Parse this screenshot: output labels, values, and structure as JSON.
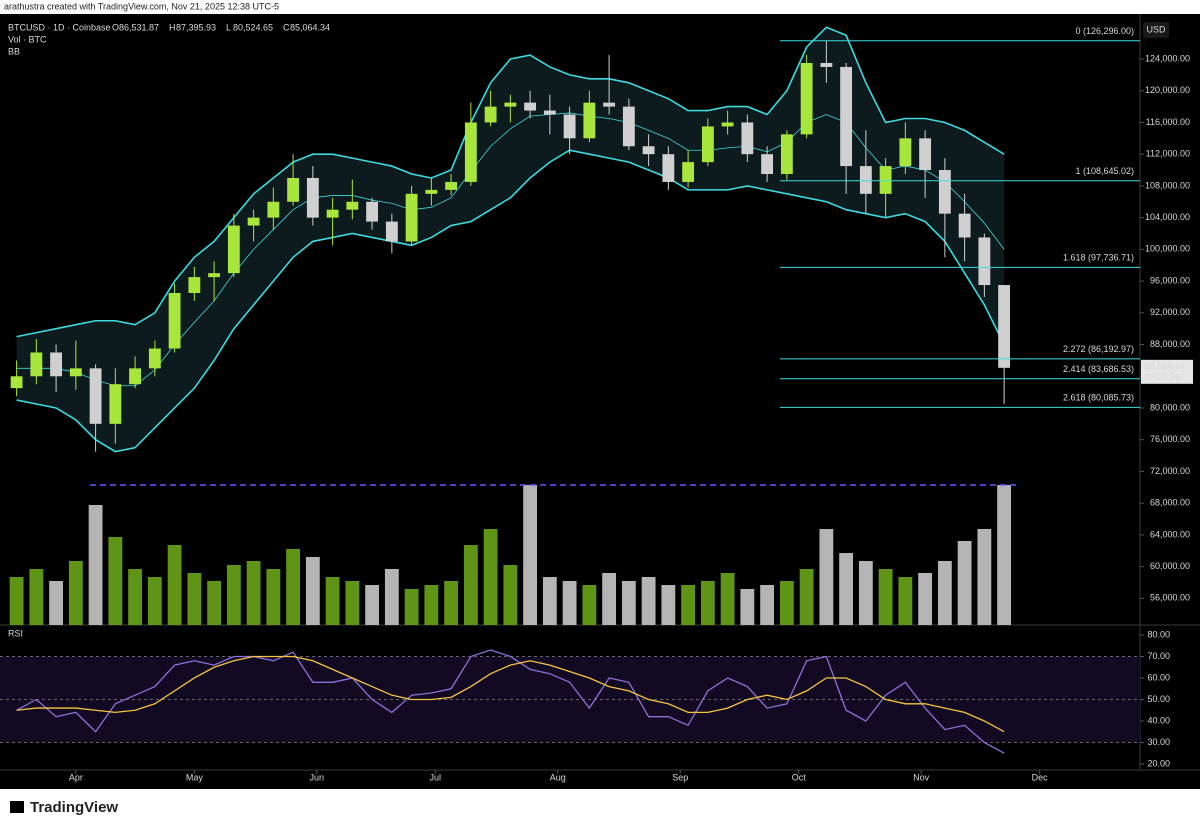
{
  "header": "arathustra created with TradingView.com, Nov 21, 2025 12:38 UTC-5",
  "footer": "TradingView",
  "chart_data": {
    "type": "candlestick",
    "symbol": "BTCUSD · 1D · Coinbase",
    "ohlc": [
      {
        "key": "O",
        "value": "86,531.87"
      },
      {
        "key": "H",
        "value": "87,395.93"
      },
      {
        "key": "L",
        "value": "80,524.65"
      },
      {
        "key": "C",
        "value": "85,064.34"
      }
    ],
    "volume_label": "Vol · BTC",
    "bb_label": "BB",
    "currency": "USD",
    "price_tag": "85,064.34",
    "countdown": "06:21:26",
    "x": [
      -15,
      -10,
      -5,
      0,
      5,
      10,
      15,
      20,
      25,
      30,
      35,
      40,
      45,
      50,
      55,
      60,
      65,
      70,
      75,
      80,
      85,
      90,
      95,
      100,
      105,
      110,
      115,
      120,
      125,
      130,
      135,
      140,
      145,
      150,
      155,
      160,
      165,
      170,
      175,
      180,
      185,
      190,
      195,
      200,
      205,
      210,
      215,
      220,
      225,
      230,
      235
    ],
    "xlim": [
      -19.2,
      269.4
    ],
    "xticks": [
      {
        "value": 0,
        "label": "Apr"
      },
      {
        "value": 30,
        "label": "May"
      },
      {
        "value": 61,
        "label": "Jun"
      },
      {
        "value": 91,
        "label": "Jul"
      },
      {
        "value": 122,
        "label": "Aug"
      },
      {
        "value": 153,
        "label": "Sep"
      },
      {
        "value": 183,
        "label": "Oct"
      },
      {
        "value": 214,
        "label": "Nov"
      },
      {
        "value": 244,
        "label": "Dec"
      }
    ],
    "open": [
      82500,
      84000,
      87000,
      84000,
      85000,
      78000,
      83000,
      85000,
      87500,
      94500,
      96500,
      97000,
      103000,
      104000,
      106000,
      109000,
      104000,
      105000,
      106000,
      103500,
      101000,
      107000,
      107500,
      108500,
      116000,
      118000,
      118500,
      117500,
      117000,
      114000,
      118500,
      118000,
      113000,
      112000,
      108500,
      111000,
      115500,
      116000,
      112000,
      109500,
      114500,
      123500,
      123000,
      110500,
      107000,
      110500,
      114000,
      110000,
      104500,
      101500,
      95500
    ],
    "high": [
      86000,
      88700,
      88000,
      88500,
      85500,
      85000,
      86500,
      88500,
      95700,
      97800,
      98500,
      104500,
      105000,
      107800,
      112000,
      110500,
      106500,
      108800,
      106500,
      104500,
      108000,
      109000,
      109500,
      118500,
      120000,
      119500,
      120000,
      119500,
      118000,
      120000,
      124500,
      119000,
      114500,
      113000,
      112500,
      116500,
      117500,
      117000,
      113000,
      115000,
      124500,
      126296,
      123500,
      115000,
      111500,
      116000,
      115000,
      111500,
      107000,
      102000,
      95500
    ],
    "low": [
      81500,
      83000,
      82000,
      82300,
      74500,
      75500,
      82500,
      84000,
      87000,
      93500,
      93500,
      96500,
      101000,
      102500,
      105500,
      103000,
      100500,
      103800,
      102500,
      99500,
      100500,
      105500,
      106800,
      108000,
      115500,
      116000,
      116500,
      114500,
      112000,
      113500,
      117000,
      112500,
      110500,
      107500,
      107800,
      110500,
      114500,
      111000,
      108500,
      108800,
      114000,
      121000,
      107000,
      104500,
      104000,
      109500,
      106500,
      99000,
      98500,
      94000,
      80524.65
    ],
    "close": [
      84000,
      87000,
      84000,
      85000,
      78000,
      83000,
      85000,
      87500,
      94500,
      96500,
      97000,
      103000,
      104000,
      106000,
      109000,
      104000,
      105000,
      106000,
      103500,
      101000,
      107000,
      107500,
      108500,
      116000,
      118000,
      118500,
      117500,
      117000,
      114000,
      118500,
      118000,
      113000,
      112000,
      108500,
      111000,
      115500,
      116000,
      112000,
      109500,
      114500,
      123500,
      123000,
      110500,
      107000,
      110500,
      114000,
      110000,
      104500,
      101500,
      95500,
      85064.34
    ],
    "colors": {
      "up": "#a8e63c",
      "down": "#d0d0d0",
      "vol_up": "#5f9417",
      "vol_down": "#b4b4b4",
      "bb": "#3ddbe0",
      "rsi": "#8f6fd8",
      "rsi_ma": "#f5c542",
      "vol_max": "#7b4dff"
    },
    "bb": {
      "upper": [
        89000,
        89500,
        90000,
        90500,
        91000,
        91000,
        90500,
        92000,
        96000,
        99000,
        101000,
        104000,
        107000,
        109000,
        111000,
        112000,
        112000,
        111500,
        111000,
        110500,
        109500,
        109000,
        110000,
        116000,
        121000,
        124000,
        124500,
        123000,
        122000,
        121500,
        121500,
        121000,
        120000,
        119000,
        117500,
        117500,
        118000,
        118000,
        117000,
        120000,
        125500,
        128000,
        127000,
        121000,
        116000,
        116500,
        116500,
        116000,
        115000,
        113500,
        112000
      ],
      "basis": [
        85000,
        85000,
        85000,
        84500,
        83500,
        82800,
        82800,
        84800,
        88000,
        90800,
        93500,
        97000,
        100000,
        102500,
        105000,
        106500,
        106800,
        106800,
        106200,
        105800,
        105000,
        105300,
        106500,
        109800,
        113000,
        115200,
        116800,
        117000,
        117200,
        116800,
        116500,
        116000,
        115000,
        114000,
        112500,
        112500,
        112800,
        113000,
        112300,
        113500,
        116000,
        117000,
        116000,
        112800,
        110000,
        110500,
        110000,
        108500,
        106000,
        103300,
        100000
      ],
      "lower": [
        81000,
        80500,
        80000,
        78500,
        76000,
        74500,
        75000,
        77500,
        80000,
        82500,
        86000,
        90000,
        93000,
        96000,
        99000,
        101000,
        101500,
        102000,
        101500,
        101000,
        100500,
        101500,
        103000,
        103500,
        105000,
        106500,
        109000,
        111000,
        112500,
        112000,
        111500,
        111000,
        110000,
        109000,
        107500,
        107500,
        107500,
        108000,
        107500,
        107000,
        106500,
        106000,
        105000,
        104500,
        104000,
        104500,
        103500,
        101000,
        97000,
        93000,
        88000
      ]
    },
    "ylim": [
      52640,
      129170
    ],
    "yticks": [
      {
        "value": 56000,
        "label": "56,000.00"
      },
      {
        "value": 60000,
        "label": "60,000.00"
      },
      {
        "value": 64000,
        "label": "64,000.00"
      },
      {
        "value": 68000,
        "label": "68,000.00"
      },
      {
        "value": 72000,
        "label": "72,000.00"
      },
      {
        "value": 76000,
        "label": "76,000.00"
      },
      {
        "value": 80000,
        "label": "80,000.00"
      },
      {
        "value": 84000,
        "label": "84,000.00"
      },
      {
        "value": 88000,
        "label": "88,000.00"
      },
      {
        "value": 92000,
        "label": "92,000.00"
      },
      {
        "value": 96000,
        "label": "96,000.00"
      },
      {
        "value": 100000,
        "label": "100,000.00"
      },
      {
        "value": 104000,
        "label": "104,000.00"
      },
      {
        "value": 108000,
        "label": "108,000.00"
      },
      {
        "value": 112000,
        "label": "112,000.00"
      },
      {
        "value": 116000,
        "label": "116,000.00"
      },
      {
        "value": 120000,
        "label": "120,000.00"
      },
      {
        "value": 124000,
        "label": "124,000.00"
      }
    ],
    "fib_levels": [
      {
        "value": 126296,
        "label": "0 (126,296.00)"
      },
      {
        "value": 108645.02,
        "label": "1 (108,645.02)"
      },
      {
        "value": 97736.71,
        "label": "1.618 (97,736.71)"
      },
      {
        "value": 86192.97,
        "label": "2.272 (86,192.97)"
      },
      {
        "value": 83686.53,
        "label": "2.414 (83,686.53)"
      },
      {
        "value": 80085.73,
        "label": "2.618 (80,085.73)"
      }
    ],
    "volume": [
      12000,
      14000,
      11000,
      16000,
      30000,
      22000,
      14000,
      12000,
      20000,
      13000,
      11000,
      15000,
      16000,
      14000,
      19000,
      17000,
      12000,
      11000,
      10000,
      14000,
      9000,
      10000,
      11000,
      20000,
      24000,
      15000,
      35000,
      12000,
      11000,
      10000,
      13000,
      11000,
      12000,
      10000,
      10000,
      11000,
      13000,
      9000,
      10000,
      11000,
      14000,
      24000,
      18000,
      16000,
      14000,
      12000,
      13000,
      16000,
      21000,
      24000,
      35000
    ],
    "rsi": {
      "label": "RSI",
      "values": [
        45,
        50,
        42,
        44,
        35,
        48,
        52,
        56,
        66,
        68,
        66,
        70,
        70,
        68,
        72,
        58,
        58,
        60,
        50,
        44,
        52,
        53,
        55,
        70,
        73,
        70,
        64,
        62,
        58,
        46,
        60,
        58,
        42,
        42,
        38,
        54,
        60,
        56,
        46,
        48,
        68,
        70,
        45,
        40,
        52,
        58,
        46,
        36,
        38,
        30,
        25
      ],
      "ma": [
        45,
        46,
        46,
        46,
        45,
        44,
        45,
        48,
        54,
        60,
        65,
        68,
        70,
        70,
        70,
        68,
        64,
        60,
        56,
        52,
        50,
        50,
        51,
        56,
        62,
        66,
        68,
        66,
        63,
        60,
        56,
        54,
        50,
        48,
        44,
        44,
        46,
        50,
        52,
        50,
        54,
        60,
        60,
        56,
        50,
        48,
        48,
        46,
        44,
        40,
        35
      ],
      "ylim": [
        17.2,
        84.65
      ],
      "yticks": [
        {
          "value": 20,
          "label": "20.00"
        },
        {
          "value": 30,
          "label": "30.00"
        },
        {
          "value": 40,
          "label": "40.00"
        },
        {
          "value": 50,
          "label": "50.00"
        },
        {
          "value": 60,
          "label": "60.00"
        },
        {
          "value": 70,
          "label": "70.00"
        },
        {
          "value": 80,
          "label": "80.00"
        }
      ],
      "bands": [
        70,
        50,
        30
      ]
    }
  }
}
